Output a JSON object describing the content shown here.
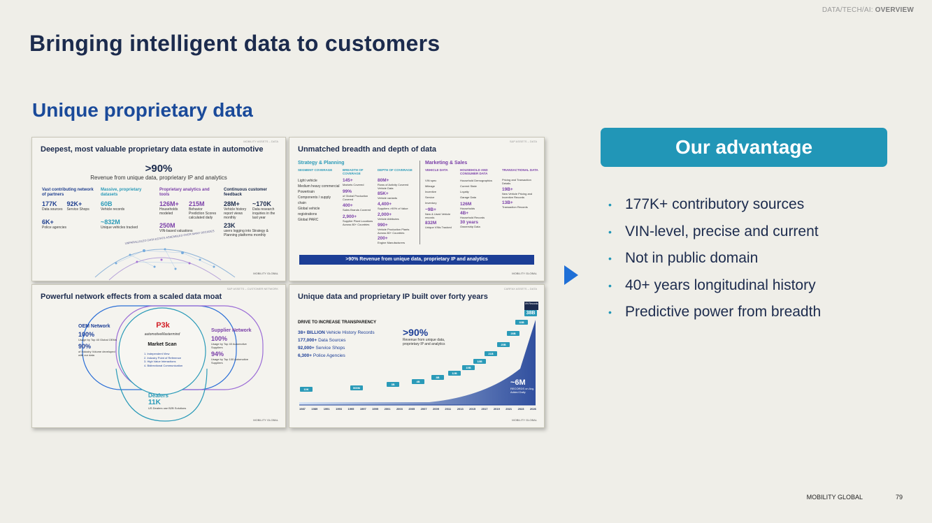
{
  "header": {
    "crumb_prefix": "DATA/TECH/AI: ",
    "crumb_bold": "OVERVIEW"
  },
  "title": "Bringing intelligent data to customers",
  "subtitle": "Unique proprietary data",
  "thumbnails": {
    "t1": {
      "tag": "MOBILITY ASSETS – DATA",
      "title": "Deepest, most valuable proprietary data estate in automotive",
      "big": ">90%",
      "big_sub": "Revenue from unique data, proprietary IP and analytics",
      "cols": [
        {
          "head": "Vast contributing network of partners",
          "stats": [
            [
              "177K",
              "Data sources"
            ],
            [
              "92K+",
              "Service Shops"
            ],
            [
              "6K+",
              "Police agencies"
            ]
          ]
        },
        {
          "head": "Massive, proprietary datasets",
          "stats": [
            [
              "60B",
              "Vehicle records"
            ],
            [
              "~832M",
              "Unique vehicles tracked"
            ]
          ]
        },
        {
          "head": "Proprietary analytics and tools",
          "stats": [
            [
              "126M+",
              "Households modeled"
            ],
            [
              "215M",
              "Behavior Prediction Scores calculated daily"
            ],
            [
              "250M",
              "VIN-based valuations"
            ]
          ]
        },
        {
          "head": "Continuous customer feedback",
          "stats": [
            [
              "28M+",
              "Vehicle history report views monthly"
            ],
            [
              "~170K",
              "Data research inquiries in the last year"
            ],
            [
              "23K",
              "users logging into Strategy & Planning platforms monthly"
            ]
          ]
        }
      ],
      "arc_text": "UNPARALLELED DATA ESTATE ASSEMBLED OVER MANY DECADES",
      "foot": "MOBILITY GLOBAL"
    },
    "t2": {
      "tag": "S&P ASSETS – DATA",
      "title": "Unmatched breadth and depth of data",
      "left_head": "Strategy & Planning",
      "right_head": "Marketing & Sales",
      "col_heads": [
        "SEGMENT COVERAGE",
        "BREADTH OF COVERAGE",
        "DEPTH OF COVERAGE",
        "VEHICLE DATA",
        "HOUSEHOLD AND CONSUMER DATA",
        "TRANSACTIONAL DATA"
      ],
      "segments": [
        "Light vehicle",
        "Medium heavy commercial",
        "Powertrain",
        "Components / supply chain",
        "Global vehicle registrations",
        "Global PARC"
      ],
      "breadth": [
        [
          "145+",
          "Markets Covered"
        ],
        [
          "99%",
          "of Global Production Covered"
        ],
        [
          "400+",
          "Sales Brands Covered"
        ],
        [
          "2,900+",
          "Supplier Plant Locations Across 80+ Countries"
        ]
      ],
      "depth": [
        [
          "80M+",
          "Rows of Activity Covered Vehicle Data"
        ],
        [
          "85K+",
          "Vehicle variants"
        ],
        [
          "4,400+",
          "Suppliers >90% of Value"
        ],
        [
          "2,000+",
          "Vehicle Attributes"
        ],
        [
          "990+",
          "Vehicle Production Plants Across 80+ Countries"
        ],
        [
          "200+",
          "Engine Manufacturers"
        ]
      ],
      "vehicle": [
        "VIN spec",
        "Mileage",
        "Incentive",
        "Service",
        "Inventory"
      ],
      "vehicle_stats": [
        [
          "~9B+",
          "New & Used Vehicle records"
        ],
        [
          "832M",
          "Unique VINs Tracked"
        ]
      ],
      "household": [
        "Household Demographics",
        "Current State",
        "Loyalty",
        "Garage Data"
      ],
      "household_stats": [
        [
          "126M",
          "Households"
        ],
        [
          "4B+",
          "Household Records"
        ],
        [
          "30 years",
          "Ownership Data"
        ]
      ],
      "transactional": [
        "Pricing and Transaction Details"
      ],
      "trans_stats": [
        [
          "19B+",
          "New Vehicle Pricing and Incentive Records"
        ],
        [
          "13B+",
          "Transaction Records"
        ]
      ],
      "banner": ">90% Revenue from unique data, proprietary IP and analytics",
      "foot": "MOBILITY GLOBAL"
    },
    "t3": {
      "tag": "S&P ASSETS – CUSTOMER NETWORK",
      "title": "Powerful network effects from a scaled data moat",
      "oem": {
        "head": "OEM Network",
        "v1": "100%",
        "d1": "Usage by Top 40 Global OEMs",
        "v2": "90%",
        "d2": "of Industry Volume developed with our data"
      },
      "supplier": {
        "head": "Supplier Network",
        "v1": "100%",
        "d1": "Usage by Top 40 Automotive Suppliers",
        "v2": "94%",
        "d2": "Usage by Top 100 Automotive Suppliers"
      },
      "dealers": {
        "head": "Dealers",
        "v": "11K",
        "d": "US Dealers use B2B Solutions"
      },
      "logo": "P3k",
      "brand": "automotiveMastermind",
      "center_head": "Market Scan",
      "center_items": [
        "1. Independent View",
        "2. Industry Point of Reference",
        "3. High Value Interactions",
        "4. Bidirectional Communication"
      ],
      "foot": "MOBILITY GLOBAL"
    },
    "t4": {
      "tag": "CARFAX ASSETS – DATA",
      "title": "Unique data and proprietary IP built over forty years",
      "drive_head": "DRIVE TO INCREASE TRANSPARENCY",
      "facts": [
        [
          "38+ BILLION",
          "Vehicle History Records"
        ],
        [
          "177,000+",
          "Data Sources"
        ],
        [
          "92,000+",
          "Service Shops"
        ],
        [
          "6,300+",
          "Police Agencies"
        ]
      ],
      "big": ">90%",
      "big_sub": "Revenue from unique data, proprietary IP and analytics",
      "chart_labels": [
        "10K",
        "500M",
        "3B",
        "4B",
        "8B",
        "12B",
        "15B",
        "18B",
        "21B",
        "25B",
        "28B",
        "33B",
        "38B"
      ],
      "years": [
        "1987",
        "1989",
        "1991",
        "1993",
        "1995",
        "1997",
        "1999",
        "2001",
        "2003",
        "2005",
        "2007",
        "2009",
        "2011",
        "2013",
        "2015",
        "2017",
        "2019",
        "2021",
        "2023",
        "2026"
      ],
      "vin_badge": "VH Records",
      "six_m": "~6M",
      "six_m_sub": "RECORDS on Avg. Added Daily",
      "foot": "MOBILITY GLOBAL"
    }
  },
  "advantage": {
    "title": "Our advantage",
    "bullets": [
      "177K+ contributory sources",
      "VIN-level, precise and current",
      "Not in public domain",
      "40+ years longitudinal history",
      "Predictive power from breadth"
    ]
  },
  "footer": {
    "company": "MOBILITY GLOBAL",
    "page": "79"
  },
  "colors": {
    "title": "#1c2b4d",
    "subtitle": "#1a4a9a",
    "accent": "#2196b7",
    "arrow": "#1f6fd6"
  }
}
